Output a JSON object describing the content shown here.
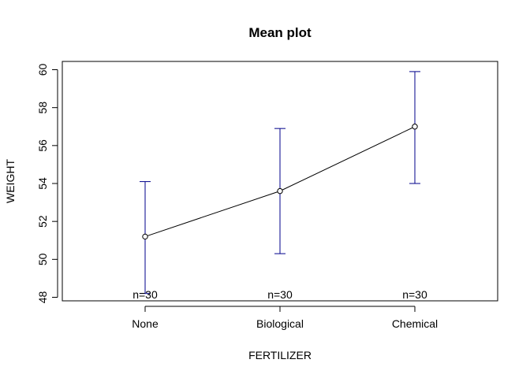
{
  "chart_data": {
    "type": "line",
    "title": "Mean plot",
    "xlabel": "FERTILIZER",
    "ylabel": "WEIGHT",
    "categories": [
      "None",
      "Biological",
      "Chemical"
    ],
    "series": [
      {
        "values": [
          51.2,
          53.6,
          57.0
        ],
        "lower": [
          48.2,
          50.3,
          54.0
        ],
        "upper": [
          54.1,
          56.9,
          59.9
        ],
        "counts": [
          "n=30",
          "n=30",
          "n=30"
        ]
      }
    ],
    "ylim": [
      47.9,
      60.5
    ],
    "yticks": [
      "48",
      "50",
      "52",
      "54",
      "56",
      "58",
      "60"
    ],
    "grid": false,
    "errorbar_color": "#00008b",
    "line_color": "#000000"
  }
}
